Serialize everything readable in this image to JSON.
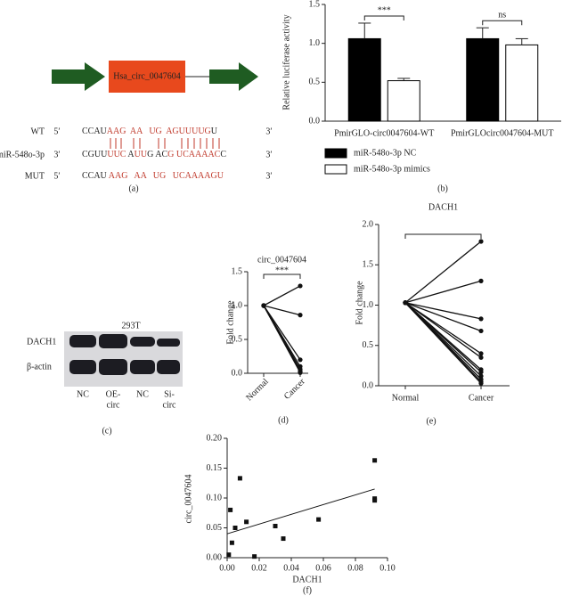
{
  "panel_a": {
    "gene_label": "Hsa_circ_0047604",
    "rows": [
      {
        "name": "WT",
        "end_left": "5′",
        "end_right": "3′",
        "segments": [
          {
            "text": "CCAU",
            "color": "#222222"
          },
          {
            "text": "AAG",
            "color": "#c0392b"
          },
          {
            "text": "  AA",
            "color": "#c0392b"
          },
          {
            "text": "   UG",
            "color": "#c0392b"
          },
          {
            "text": "  AGUUUUG",
            "color": "#c0392b"
          },
          {
            "text": "U",
            "color": "#222222"
          }
        ]
      },
      {
        "name": "miR-548o-3p",
        "end_left": "3′",
        "end_right": "3′",
        "segments": [
          {
            "text": "CGUU",
            "color": "#222222"
          },
          {
            "text": "UUC",
            "color": "#c0392b"
          },
          {
            "text": " A",
            "color": "#222222"
          },
          {
            "text": "UU",
            "color": "#c0392b"
          },
          {
            "text": "G",
            "color": "#222222"
          },
          {
            "text": " AC",
            "color": "#222222"
          },
          {
            "text": "G",
            "color": "#c0392b"
          },
          {
            "text": " UCAAAAC",
            "color": "#c0392b"
          },
          {
            "text": "C",
            "color": "#222222"
          }
        ]
      },
      {
        "name": "MUT",
        "end_left": "5′",
        "end_right": "3′",
        "segments": [
          {
            "text": "CCAU",
            "color": "#222222"
          },
          {
            "text": " AAG",
            "color": "#c0392b"
          },
          {
            "text": "   AA",
            "color": "#c0392b"
          },
          {
            "text": "   UG",
            "color": "#c0392b"
          },
          {
            "text": "   UCAAAAGU",
            "color": "#c0392b"
          }
        ]
      }
    ],
    "label": "(a)"
  },
  "panel_c": {
    "title": "293T",
    "rows": [
      "DACH1",
      "β-actin"
    ],
    "lanes": [
      [
        "NC"
      ],
      [
        "OE-",
        "circ"
      ],
      [
        "NC"
      ],
      [
        "Si-",
        "circ"
      ]
    ],
    "label": "(c)"
  },
  "chart_data": [
    {
      "type": "bar",
      "y_label": "Relative luciferase activity",
      "categories": [
        "PmirGLO-circ0047604-WT",
        "PmirGLOcirc0047604-MUT"
      ],
      "series": [
        {
          "name": "miR-548o-3p NC",
          "color": "#000000",
          "values": [
            1.06,
            1.06
          ],
          "errors": [
            0.2,
            0.14
          ]
        },
        {
          "name": "miR-548o-3p mimics",
          "color": "#ffffff",
          "values": [
            0.52,
            0.98
          ],
          "errors": [
            0.03,
            0.08
          ]
        }
      ],
      "annotations": [
        "***",
        "ns"
      ],
      "ylim": [
        0,
        1.5
      ],
      "yticks": [
        {
          "value": 0,
          "label": "0.0"
        },
        0.5,
        {
          "value": 1,
          "label": "1.0"
        },
        1.5
      ],
      "panel_label": "(b)"
    },
    {
      "type": "paired-line",
      "title": "circ_0047604",
      "y_label": "Fold change",
      "color": "#111111",
      "categories": [
        "Normal",
        "Cancer"
      ],
      "series": [
        {
          "values": [
            1.0,
            1.29
          ]
        },
        {
          "values": [
            1.0,
            0.86
          ]
        },
        {
          "values": [
            1.0,
            0.2
          ]
        },
        {
          "values": [
            1.0,
            0.1
          ]
        },
        {
          "values": [
            1.0,
            0.06
          ]
        },
        {
          "values": [
            1.0,
            0.03
          ]
        },
        {
          "values": [
            1.0,
            0.02
          ]
        },
        {
          "values": [
            1.0,
            0.01
          ]
        }
      ],
      "annotation": "***",
      "ylim": [
        0,
        1.5
      ],
      "yticks": [
        {
          "value": 0,
          "label": "0.0"
        },
        0.5,
        {
          "value": 1,
          "label": "1.0"
        },
        1.5
      ],
      "panel_label": "(d)"
    },
    {
      "type": "paired-line",
      "title": "DACH1",
      "y_label": "Fold change",
      "color": "#111111",
      "categories": [
        "Normal",
        "Cancer"
      ],
      "series": [
        {
          "values": [
            1.03,
            1.79
          ]
        },
        {
          "values": [
            1.03,
            1.3
          ]
        },
        {
          "values": [
            1.03,
            0.83
          ]
        },
        {
          "values": [
            1.03,
            0.68
          ]
        },
        {
          "values": [
            1.03,
            0.4
          ]
        },
        {
          "values": [
            1.03,
            0.35
          ]
        },
        {
          "values": [
            1.03,
            0.2
          ]
        },
        {
          "values": [
            1.03,
            0.17
          ]
        },
        {
          "values": [
            1.03,
            0.12
          ]
        },
        {
          "values": [
            1.03,
            0.08
          ]
        },
        {
          "values": [
            1.03,
            0.05
          ]
        },
        {
          "values": [
            1.03,
            0.03
          ]
        }
      ],
      "ylim": [
        0,
        2
      ],
      "yticks": [
        {
          "value": 0,
          "label": "0.0"
        },
        0.5,
        {
          "value": 1,
          "label": "1.0"
        },
        1.5,
        {
          "value": 2,
          "label": "2.0"
        }
      ],
      "panel_label": "(e)"
    },
    {
      "type": "scatter",
      "x_label": "DACH1",
      "y_label": "circ_0047604",
      "color": "#111111",
      "x": [
        0.001,
        0.002,
        0.003,
        0.005,
        0.008,
        0.012,
        0.017,
        0.03,
        0.035,
        0.057,
        0.092,
        0.092,
        0.092
      ],
      "y": [
        0.005,
        0.08,
        0.025,
        0.05,
        0.133,
        0.06,
        0.002,
        0.053,
        0.032,
        0.064,
        0.163,
        0.096,
        0.099
      ],
      "fit_line": {
        "x": [
          0,
          0.092
        ],
        "y": [
          0.04,
          0.115
        ]
      },
      "xlim": [
        0,
        0.1
      ],
      "xticks": [
        {
          "value": 0,
          "label": "0.00"
        },
        0.02,
        0.04,
        0.06,
        0.08,
        {
          "value": 0.1,
          "label": "0.10"
        }
      ],
      "ylim": [
        0,
        0.2
      ],
      "yticks": [
        {
          "value": 0,
          "label": "0.00"
        },
        0.05,
        {
          "value": 0.1,
          "label": "0.10"
        },
        0.15,
        {
          "value": 0.2,
          "label": "0.20"
        }
      ],
      "panel_label": "(f)"
    }
  ]
}
